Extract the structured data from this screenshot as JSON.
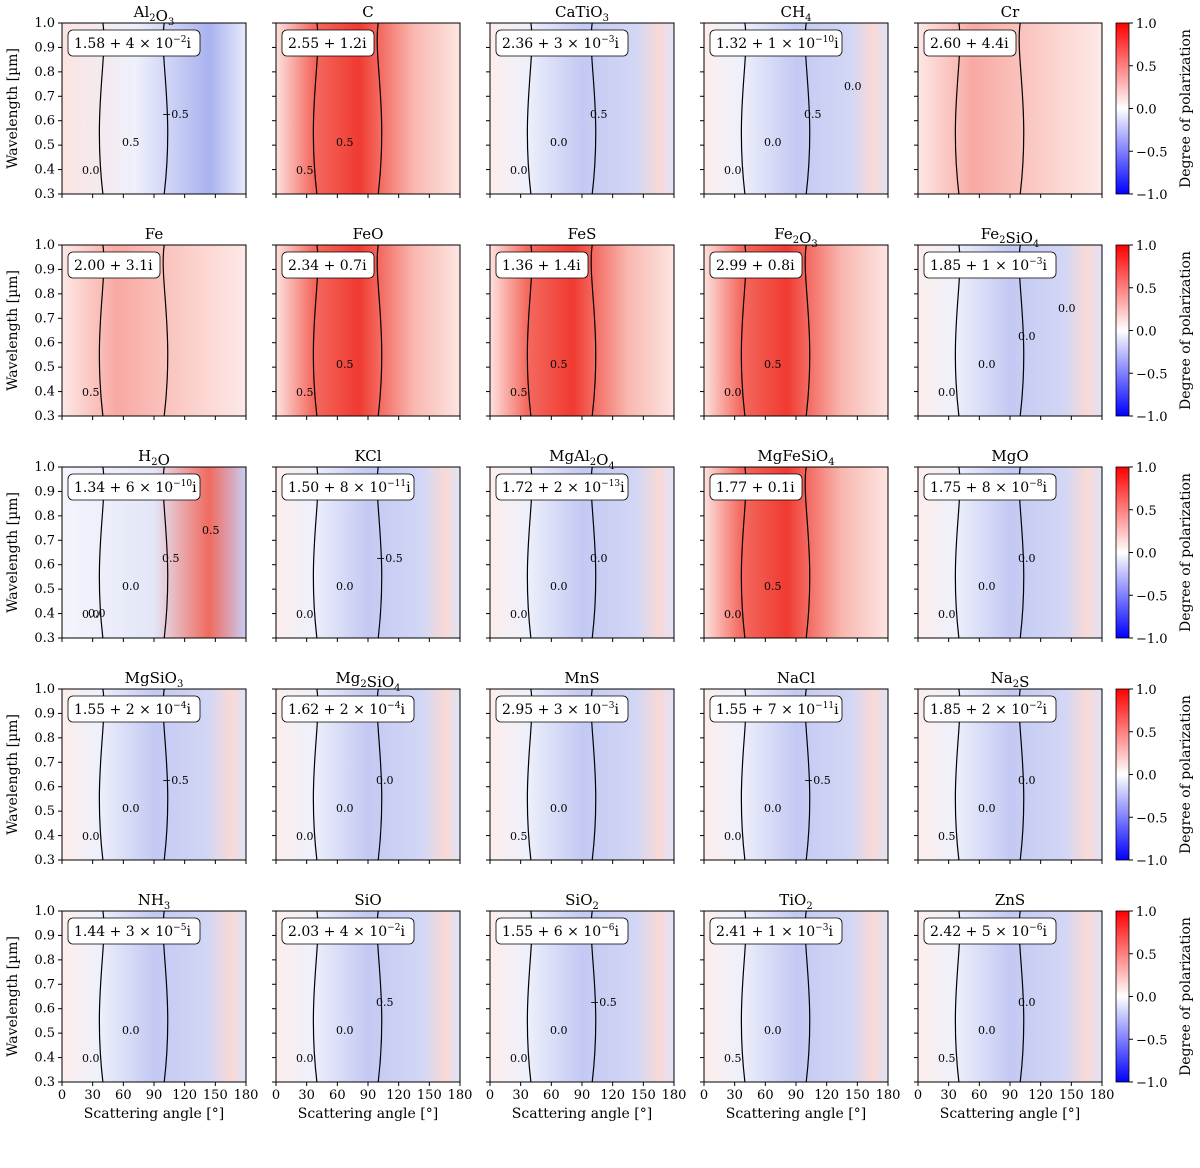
{
  "chart_data": {
    "type": "heatmap",
    "title": "",
    "xlabel": "Scattering angle [°]",
    "ylabel": "Wavelength [µm]",
    "xlim": [
      0,
      180
    ],
    "ylim": [
      0.3,
      1.0
    ],
    "xticks": [
      0,
      30,
      60,
      90,
      120,
      150,
      180
    ],
    "yticks": [
      0.3,
      0.4,
      0.5,
      0.6,
      0.7,
      0.8,
      0.9,
      1.0
    ],
    "colorbar": {
      "label": "Degree of polarization",
      "min": -1.0,
      "max": 1.0,
      "ticks": [
        -1.0,
        -0.5,
        0.0,
        0.5,
        1.0
      ],
      "colors": [
        "#0000ff",
        "#ffffff",
        "#ff0000"
      ]
    },
    "contour_levels": [
      -0.5,
      0.0,
      0.5
    ],
    "panels": [
      {
        "name": "Al2O3",
        "base": "Al",
        "sub1": "2",
        "mid": "O",
        "sub2": "3",
        "n_real": "1.58",
        "n_imag": "4",
        "n_exp": "−2",
        "dominant": "low-red high-blue",
        "contour_labels": [
          "0.0",
          "0.5",
          "−0.5"
        ]
      },
      {
        "name": "C",
        "base": "C",
        "sub1": "",
        "mid": "",
        "sub2": "",
        "n_real": "2.55",
        "n_imag": "1.2",
        "n_exp": "",
        "dominant": "red",
        "contour_labels": [
          "0.5",
          "0.5"
        ]
      },
      {
        "name": "CaTiO3",
        "base": "CaTiO",
        "sub1": "3",
        "mid": "",
        "sub2": "",
        "n_real": "2.36",
        "n_imag": "3",
        "n_exp": "−3",
        "dominant": "blue",
        "contour_labels": [
          "0.0",
          "0.0",
          "0.5"
        ]
      },
      {
        "name": "CH4",
        "base": "CH",
        "sub1": "4",
        "mid": "",
        "sub2": "",
        "n_real": "1.32",
        "n_imag": "1",
        "n_exp": "−10",
        "dominant": "blue",
        "contour_labels": [
          "0.0",
          "0.0",
          "0.5",
          "0.0"
        ]
      },
      {
        "name": "Cr",
        "base": "Cr",
        "sub1": "",
        "mid": "",
        "sub2": "",
        "n_real": "2.60",
        "n_imag": "4.4",
        "n_exp": "",
        "dominant": "light-red",
        "contour_labels": []
      },
      {
        "name": "Fe",
        "base": "Fe",
        "sub1": "",
        "mid": "",
        "sub2": "",
        "n_real": "2.00",
        "n_imag": "3.1",
        "n_exp": "",
        "dominant": "light-red",
        "contour_labels": [
          "0.5"
        ]
      },
      {
        "name": "FeO",
        "base": "FeO",
        "sub1": "",
        "mid": "",
        "sub2": "",
        "n_real": "2.34",
        "n_imag": "0.7",
        "n_exp": "",
        "dominant": "red",
        "contour_labels": [
          "0.5",
          "0.5"
        ]
      },
      {
        "name": "FeS",
        "base": "FeS",
        "sub1": "",
        "mid": "",
        "sub2": "",
        "n_real": "1.36",
        "n_imag": "1.4",
        "n_exp": "",
        "dominant": "red",
        "contour_labels": [
          "0.5",
          "0.5"
        ]
      },
      {
        "name": "Fe2O3",
        "base": "Fe",
        "sub1": "2",
        "mid": "O",
        "sub2": "3",
        "n_real": "2.99",
        "n_imag": "0.8",
        "n_exp": "",
        "dominant": "red",
        "contour_labels": [
          "0.0",
          "0.5"
        ]
      },
      {
        "name": "Fe2SiO4",
        "base": "Fe",
        "sub1": "2",
        "mid": "SiO",
        "sub2": "4",
        "n_real": "1.85",
        "n_imag": "1",
        "n_exp": "−3",
        "dominant": "blue",
        "contour_labels": [
          "0.0",
          "0.0",
          "0.0",
          "0.0"
        ]
      },
      {
        "name": "H2O",
        "base": "H",
        "sub1": "2",
        "mid": "O",
        "sub2": "",
        "n_real": "1.34",
        "n_imag": "6",
        "n_exp": "−10",
        "dominant": "light-blue",
        "contour_labels": [
          "0.0",
          "0.0",
          "0.5",
          "0.5",
          "0.0"
        ]
      },
      {
        "name": "KCl",
        "base": "KCl",
        "sub1": "",
        "mid": "",
        "sub2": "",
        "n_real": "1.50",
        "n_imag": "8",
        "n_exp": "−11",
        "dominant": "blue",
        "contour_labels": [
          "0.0",
          "0.0",
          "−0.5"
        ]
      },
      {
        "name": "MgAl2O4",
        "base": "MgAl",
        "sub1": "2",
        "mid": "O",
        "sub2": "4",
        "n_real": "1.72",
        "n_imag": "2",
        "n_exp": "−13",
        "dominant": "blue",
        "contour_labels": [
          "0.0",
          "0.0",
          "0.0"
        ]
      },
      {
        "name": "MgFeSiO4",
        "base": "MgFeSiO",
        "sub1": "4",
        "mid": "",
        "sub2": "",
        "n_real": "1.77",
        "n_imag": "0.1",
        "n_exp": "",
        "dominant": "red",
        "contour_labels": [
          "0.0",
          "0.5"
        ]
      },
      {
        "name": "MgO",
        "base": "MgO",
        "sub1": "",
        "mid": "",
        "sub2": "",
        "n_real": "1.75",
        "n_imag": "8",
        "n_exp": "−8",
        "dominant": "blue",
        "contour_labels": [
          "0.0",
          "0.0",
          "0.0"
        ]
      },
      {
        "name": "MgSiO3",
        "base": "MgSiO",
        "sub1": "3",
        "mid": "",
        "sub2": "",
        "n_real": "1.55",
        "n_imag": "2",
        "n_exp": "−4",
        "dominant": "blue",
        "contour_labels": [
          "0.0",
          "0.0",
          "−0.5"
        ]
      },
      {
        "name": "Mg2SiO4",
        "base": "Mg",
        "sub1": "2",
        "mid": "SiO",
        "sub2": "4",
        "n_real": "1.62",
        "n_imag": "2",
        "n_exp": "−4",
        "dominant": "blue",
        "contour_labels": [
          "0.0",
          "0.0",
          "0.0"
        ]
      },
      {
        "name": "MnS",
        "base": "MnS",
        "sub1": "",
        "mid": "",
        "sub2": "",
        "n_real": "2.95",
        "n_imag": "3",
        "n_exp": "−3",
        "dominant": "blue",
        "contour_labels": [
          "0.5",
          "0.0"
        ]
      },
      {
        "name": "NaCl",
        "base": "NaCl",
        "sub1": "",
        "mid": "",
        "sub2": "",
        "n_real": "1.55",
        "n_imag": "7",
        "n_exp": "−11",
        "dominant": "blue",
        "contour_labels": [
          "0.0",
          "0.0",
          "−0.5"
        ]
      },
      {
        "name": "Na2S",
        "base": "Na",
        "sub1": "2",
        "mid": "S",
        "sub2": "",
        "n_real": "1.85",
        "n_imag": "2",
        "n_exp": "−2",
        "dominant": "blue",
        "contour_labels": [
          "0.5",
          "0.0",
          "0.0"
        ]
      },
      {
        "name": "NH3",
        "base": "NH",
        "sub1": "3",
        "mid": "",
        "sub2": "",
        "n_real": "1.44",
        "n_imag": "3",
        "n_exp": "−5",
        "dominant": "blue",
        "contour_labels": [
          "0.0",
          "0.0"
        ]
      },
      {
        "name": "SiO",
        "base": "SiO",
        "sub1": "",
        "mid": "",
        "sub2": "",
        "n_real": "2.03",
        "n_imag": "4",
        "n_exp": "−2",
        "dominant": "blue",
        "contour_labels": [
          "0.0",
          "0.0",
          "0.5"
        ]
      },
      {
        "name": "SiO2",
        "base": "SiO",
        "sub1": "2",
        "mid": "",
        "sub2": "",
        "n_real": "1.55",
        "n_imag": "6",
        "n_exp": "−6",
        "dominant": "blue",
        "contour_labels": [
          "0.0",
          "0.0",
          "−0.5"
        ]
      },
      {
        "name": "TiO2",
        "base": "TiO",
        "sub1": "2",
        "mid": "",
        "sub2": "",
        "n_real": "2.41",
        "n_imag": "1",
        "n_exp": "−3",
        "dominant": "blue",
        "contour_labels": [
          "0.5",
          "0.0"
        ]
      },
      {
        "name": "ZnS",
        "base": "ZnS",
        "sub1": "",
        "mid": "",
        "sub2": "",
        "n_real": "2.42",
        "n_imag": "5",
        "n_exp": "−6",
        "dominant": "blue",
        "contour_labels": [
          "0.5",
          "0.0",
          "0.0"
        ]
      }
    ]
  }
}
